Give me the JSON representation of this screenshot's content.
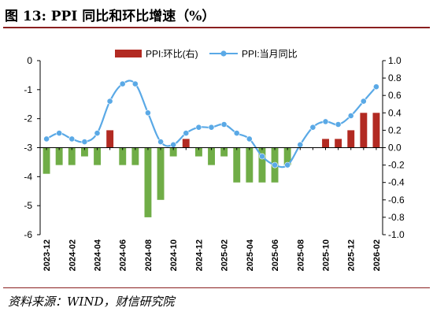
{
  "title": "图 13:  PPI 同比和环比增速（%）",
  "source": "资料来源：WIND，财信研究院",
  "colors": {
    "bar": "#b22a22",
    "bar_negative": "#70ad47",
    "line": "#5aa9e6",
    "title_rule": "#8a1f1f"
  },
  "chart_data": {
    "type": "bar+line",
    "x_tick_labels": [
      "2023-12",
      "2024-02",
      "2024-04",
      "2024-06",
      "2024-08",
      "2024-10",
      "2024-12",
      "2025-02",
      "2025-04",
      "2025-06",
      "2025-08",
      "2025-10",
      "2025-12",
      "2026-02"
    ],
    "categories": [
      "2023-12",
      "2024-01",
      "2024-02",
      "2024-03",
      "2024-04",
      "2024-05",
      "2024-06",
      "2024-07",
      "2024-08",
      "2024-09",
      "2024-10",
      "2024-11",
      "2024-12",
      "2025-01",
      "2025-02",
      "2025-03",
      "2025-04",
      "2025-05",
      "2025-06",
      "2025-07",
      "2025-08",
      "2025-09",
      "2025-10",
      "2025-11",
      "2025-12",
      "2026-01",
      "2026-02"
    ],
    "series": [
      {
        "name": "PPI:环比(右)",
        "type": "bar",
        "axis": "right",
        "values": [
          -0.3,
          -0.2,
          -0.2,
          -0.1,
          -0.2,
          0.2,
          -0.2,
          -0.2,
          -0.8,
          -0.6,
          -0.1,
          0.1,
          -0.1,
          -0.2,
          -0.1,
          -0.4,
          -0.4,
          -0.4,
          -0.4,
          -0.2,
          0.0,
          0.0,
          0.1,
          0.1,
          0.2,
          0.4,
          0.4
        ]
      },
      {
        "name": "PPI:当月同比",
        "type": "line",
        "axis": "left",
        "values": [
          -2.7,
          -2.5,
          -2.7,
          -2.8,
          -2.5,
          -1.4,
          -0.8,
          -0.8,
          -1.8,
          -2.8,
          -2.9,
          -2.5,
          -2.3,
          -2.3,
          -2.2,
          -2.5,
          -2.7,
          -3.3,
          -3.6,
          -3.6,
          -2.9,
          -2.3,
          -2.1,
          -2.2,
          -1.9,
          -1.4,
          -0.9
        ]
      }
    ],
    "y_left": {
      "min": -6,
      "max": 0,
      "ticks": [
        0,
        -1,
        -2,
        -3,
        -4,
        -5,
        -6
      ]
    },
    "y_right": {
      "min": -1.0,
      "max": 1.0,
      "ticks": [
        "1.0",
        "0.8",
        "0.6",
        "0.4",
        "0.2",
        "0.0",
        "-0.2",
        "-0.4",
        "-0.6",
        "-0.8",
        "-1.0"
      ]
    },
    "legend_placement": "top",
    "grid": false
  }
}
